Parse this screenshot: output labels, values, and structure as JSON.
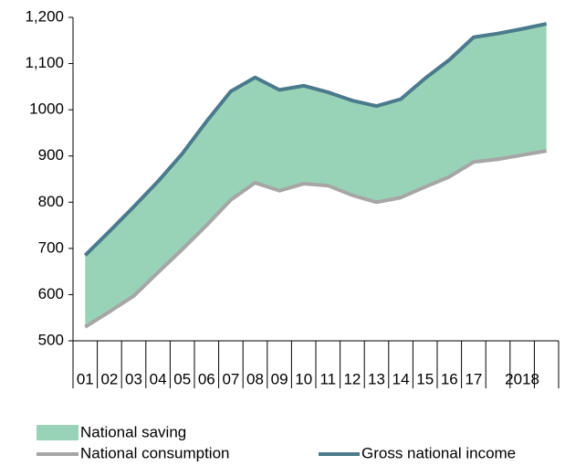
{
  "chart_data": {
    "type": "area-between",
    "categories": [
      "01",
      "02",
      "03",
      "04",
      "05",
      "06",
      "07",
      "08",
      "09",
      "10",
      "11",
      "12",
      "13",
      "14",
      "15",
      "16",
      "17",
      null,
      "2018",
      null
    ],
    "series": [
      {
        "name": "National consumption",
        "color": "#a6a6a6",
        "values": [
          530,
          563,
          597,
          648,
          698,
          750,
          805,
          842,
          825,
          840,
          836,
          815,
          800,
          810,
          833,
          855,
          887,
          893,
          902,
          911
        ]
      },
      {
        "name": "Gross national income",
        "color": "#4a7a8c",
        "values": [
          685,
          737,
          790,
          845,
          905,
          975,
          1040,
          1070,
          1043,
          1052,
          1038,
          1020,
          1008,
          1023,
          1068,
          1108,
          1157,
          1165,
          1175,
          1186
        ]
      }
    ],
    "fill_between": {
      "name": "National saving",
      "color": "#99d3b7"
    },
    "ylim": [
      500,
      1200
    ],
    "yticks": [
      500,
      600,
      700,
      800,
      900,
      1000,
      {
        "value": 1100,
        "label": "1,100"
      },
      {
        "value": 1200,
        "label": "1,200"
      }
    ]
  }
}
